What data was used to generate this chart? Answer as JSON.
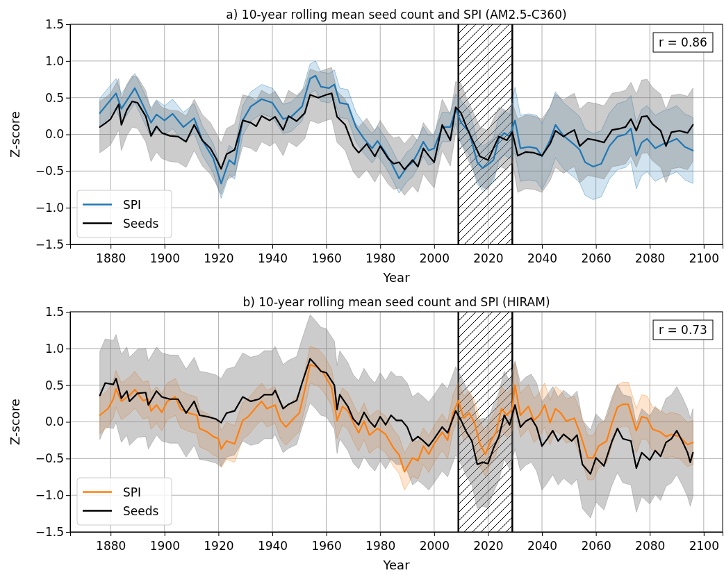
{
  "chart_data": [
    {
      "type": "line",
      "title": "a) 10-year rolling mean seed count and SPI (AM2.5-C360)",
      "xlabel": "Year",
      "ylabel": "Z-score",
      "xlim": [
        1865,
        2107
      ],
      "xticks": [
        1880,
        1900,
        1920,
        1940,
        1960,
        1980,
        2000,
        2020,
        2040,
        2060,
        2080,
        2100
      ],
      "ylim": [
        -1.5,
        1.5
      ],
      "yticks": [
        {
          "value": -1.5,
          "label": "−1.5"
        },
        {
          "value": -1,
          "label": "−1.0"
        },
        {
          "value": -0.5,
          "label": "−0.5"
        },
        {
          "value": 0,
          "label": "0.0"
        },
        {
          "value": 0.5,
          "label": "0.5"
        },
        {
          "value": 1,
          "label": "1.0"
        },
        {
          "value": 1.5,
          "label": "1.5"
        }
      ],
      "grid": true,
      "legend": "bottom left",
      "annotations": [
        "r = 0.86"
      ],
      "bands": [
        {
          "axis": "x",
          "from": 2009,
          "to": 2029,
          "color": "#000000"
        }
      ],
      "series": [
        {
          "name": "SPI",
          "color": "#1f77b4",
          "x": [
            1876,
            1878,
            1882,
            1884,
            1886,
            1889,
            1892,
            1895,
            1897,
            1900,
            1903,
            1907,
            1911,
            1914,
            1918,
            1921,
            1924,
            1926,
            1929,
            1932,
            1936,
            1940,
            1944,
            1947,
            1951,
            1954,
            1956,
            1958,
            1961,
            1963,
            1965,
            1968,
            1971,
            1974,
            1977,
            1979,
            1982,
            1984,
            1987,
            1990,
            1992,
            1994,
            1996,
            1998,
            2000,
            2003,
            2006,
            2008,
            2010,
            2013,
            2016,
            2018,
            2020,
            2022,
            2024,
            2026,
            2028,
            2030,
            2032,
            2035,
            2038,
            2040,
            2043,
            2045,
            2048,
            2050,
            2052,
            2054,
            2056,
            2059,
            2062,
            2065,
            2068,
            2071,
            2073,
            2075,
            2077,
            2079,
            2082,
            2085,
            2087,
            2090,
            2093,
            2096
          ],
          "values": [
            0.29,
            0.38,
            0.56,
            0.35,
            0.46,
            0.63,
            0.4,
            0.16,
            0.27,
            0.19,
            0.28,
            0.1,
            0.22,
            -0.08,
            -0.32,
            -0.67,
            -0.35,
            -0.41,
            0.19,
            0.38,
            0.48,
            0.43,
            0.21,
            0.24,
            0.38,
            0.76,
            0.8,
            0.65,
            0.63,
            0.68,
            0.43,
            0.41,
            0.1,
            -0.06,
            -0.19,
            -0.09,
            -0.25,
            -0.38,
            -0.6,
            -0.44,
            -0.38,
            -0.25,
            -0.1,
            -0.22,
            -0.19,
            0.1,
            0.1,
            0.35,
            0.16,
            0.03,
            -0.38,
            -0.46,
            -0.41,
            -0.35,
            -0.06,
            0.02,
            -0.03,
            0.19,
            -0.19,
            -0.17,
            -0.19,
            -0.3,
            -0.08,
            0.13,
            -0.02,
            -0.08,
            -0.14,
            -0.21,
            -0.38,
            -0.44,
            -0.4,
            -0.16,
            -0.03,
            0.0,
            0.08,
            -0.29,
            -0.11,
            -0.06,
            -0.19,
            -0.13,
            -0.11,
            -0.06,
            -0.17,
            -0.22
          ],
          "lower": [
            0.09,
            0.18,
            0.36,
            0.15,
            0.26,
            0.43,
            0.2,
            -0.04,
            0.07,
            -0.01,
            0.08,
            -0.1,
            0.02,
            -0.28,
            -0.52,
            -0.87,
            -0.55,
            -0.61,
            -0.01,
            0.18,
            0.28,
            0.23,
            0.01,
            0.04,
            0.18,
            0.56,
            0.6,
            0.45,
            0.43,
            0.48,
            0.23,
            0.21,
            -0.1,
            -0.26,
            -0.39,
            -0.29,
            -0.45,
            -0.58,
            -0.8,
            -0.64,
            -0.58,
            -0.45,
            -0.3,
            -0.42,
            -0.39,
            -0.1,
            -0.1,
            0.15,
            -0.14,
            -0.27,
            -0.68,
            -0.76,
            -0.71,
            -0.65,
            -0.36,
            -0.28,
            -0.33,
            -0.26,
            -0.64,
            -0.62,
            -0.64,
            -0.75,
            -0.53,
            -0.32,
            -0.47,
            -0.53,
            -0.59,
            -0.66,
            -0.83,
            -0.89,
            -0.85,
            -0.61,
            -0.48,
            -0.45,
            -0.37,
            -0.74,
            -0.56,
            -0.51,
            -0.64,
            -0.58,
            -0.56,
            -0.51,
            -0.62,
            -0.67
          ],
          "upper": [
            0.49,
            0.58,
            0.76,
            0.55,
            0.66,
            0.83,
            0.6,
            0.36,
            0.47,
            0.39,
            0.48,
            0.3,
            0.42,
            0.12,
            -0.12,
            -0.47,
            -0.15,
            -0.21,
            0.39,
            0.58,
            0.68,
            0.63,
            0.41,
            0.44,
            0.58,
            0.96,
            1.0,
            0.85,
            0.83,
            0.88,
            0.63,
            0.61,
            0.3,
            0.14,
            0.01,
            0.11,
            -0.05,
            -0.18,
            -0.4,
            -0.24,
            -0.18,
            -0.05,
            0.1,
            -0.02,
            0.01,
            0.3,
            0.3,
            0.55,
            0.46,
            0.33,
            -0.08,
            -0.16,
            -0.11,
            -0.05,
            0.24,
            0.32,
            0.27,
            0.64,
            0.26,
            0.28,
            0.26,
            0.15,
            0.37,
            0.58,
            0.43,
            0.37,
            0.31,
            0.24,
            0.07,
            0.01,
            0.05,
            0.29,
            0.42,
            0.45,
            0.53,
            0.16,
            0.34,
            0.39,
            0.26,
            0.32,
            0.34,
            0.39,
            0.28,
            0.23
          ]
        },
        {
          "name": "Seeds",
          "color": "#000000",
          "x": [
            1876,
            1878,
            1880,
            1883,
            1884,
            1886,
            1888,
            1890,
            1893,
            1895,
            1897,
            1899,
            1902,
            1905,
            1908,
            1911,
            1914,
            1917,
            1919,
            1921,
            1923,
            1926,
            1929,
            1932,
            1934,
            1936,
            1939,
            1941,
            1944,
            1946,
            1949,
            1952,
            1954,
            1957,
            1960,
            1962,
            1964,
            1967,
            1970,
            1972,
            1975,
            1978,
            1980,
            1983,
            1985,
            1987,
            1989,
            1992,
            1994,
            1996,
            1998,
            2000,
            2003,
            2006,
            2008,
            2010,
            2012,
            2014,
            2017,
            2020,
            2022,
            2024,
            2027,
            2029,
            2031,
            2034,
            2037,
            2040,
            2043,
            2045,
            2048,
            2050,
            2052,
            2054,
            2057,
            2060,
            2063,
            2066,
            2069,
            2071,
            2073,
            2075,
            2077,
            2079,
            2081,
            2084,
            2086,
            2088,
            2091,
            2094,
            2096
          ],
          "values": [
            0.1,
            0.15,
            0.21,
            0.41,
            0.13,
            0.33,
            0.45,
            0.43,
            0.25,
            -0.02,
            0.11,
            0.02,
            -0.02,
            -0.03,
            -0.1,
            0.13,
            -0.08,
            -0.19,
            -0.32,
            -0.47,
            -0.27,
            -0.21,
            0.19,
            0.16,
            0.11,
            0.25,
            0.19,
            0.24,
            0.06,
            0.25,
            0.18,
            0.29,
            0.54,
            0.5,
            0.54,
            0.56,
            0.24,
            0.13,
            -0.16,
            -0.25,
            -0.13,
            -0.3,
            -0.16,
            -0.33,
            -0.4,
            -0.38,
            -0.48,
            -0.35,
            -0.44,
            -0.19,
            -0.29,
            -0.38,
            0.13,
            -0.08,
            0.37,
            0.29,
            0.1,
            -0.06,
            -0.3,
            -0.35,
            -0.19,
            -0.03,
            -0.08,
            0.03,
            -0.29,
            -0.24,
            -0.25,
            -0.29,
            -0.13,
            0.05,
            -0.03,
            0.02,
            0.06,
            -0.16,
            -0.06,
            -0.08,
            -0.11,
            0.06,
            0.08,
            0.1,
            0.21,
            0.05,
            0.24,
            0.25,
            0.14,
            0.05,
            -0.16,
            0.03,
            0.05,
            0.02,
            0.13
          ],
          "lower": [
            -0.25,
            -0.2,
            -0.14,
            0.06,
            -0.22,
            -0.02,
            0.1,
            0.08,
            -0.1,
            -0.37,
            -0.24,
            -0.33,
            -0.37,
            -0.38,
            -0.45,
            -0.22,
            -0.43,
            -0.54,
            -0.67,
            -0.82,
            -0.62,
            -0.56,
            -0.16,
            -0.19,
            -0.24,
            -0.1,
            -0.16,
            -0.11,
            -0.29,
            -0.1,
            -0.17,
            -0.06,
            0.19,
            0.15,
            0.19,
            0.21,
            -0.11,
            -0.22,
            -0.51,
            -0.6,
            -0.48,
            -0.65,
            -0.51,
            -0.68,
            -0.75,
            -0.73,
            -0.83,
            -0.7,
            -0.79,
            -0.54,
            -0.64,
            -0.73,
            -0.22,
            -0.43,
            0.02,
            -0.11,
            -0.3,
            -0.46,
            -0.7,
            -0.75,
            -0.59,
            -0.43,
            -0.48,
            -0.37,
            -0.79,
            -0.74,
            -0.75,
            -0.79,
            -0.63,
            -0.45,
            -0.53,
            -0.48,
            -0.44,
            -0.66,
            -0.56,
            -0.58,
            -0.61,
            -0.44,
            -0.42,
            -0.4,
            -0.29,
            -0.45,
            -0.26,
            -0.25,
            -0.36,
            -0.45,
            -0.66,
            -0.47,
            -0.45,
            -0.48,
            -0.37
          ],
          "upper": [
            0.45,
            0.5,
            0.56,
            0.76,
            0.48,
            0.68,
            0.8,
            0.78,
            0.6,
            0.33,
            0.46,
            0.37,
            0.33,
            0.32,
            0.25,
            0.48,
            0.27,
            0.16,
            0.03,
            -0.12,
            0.08,
            0.14,
            0.54,
            0.51,
            0.46,
            0.6,
            0.54,
            0.59,
            0.41,
            0.6,
            0.53,
            0.64,
            0.89,
            0.85,
            0.89,
            0.91,
            0.59,
            0.48,
            0.19,
            0.1,
            0.22,
            0.05,
            0.19,
            0.02,
            -0.05,
            -0.03,
            -0.13,
            0.0,
            -0.09,
            0.16,
            0.06,
            -0.03,
            0.48,
            0.27,
            0.72,
            0.69,
            0.5,
            0.34,
            0.1,
            0.05,
            0.21,
            0.37,
            0.32,
            0.43,
            0.21,
            0.26,
            0.25,
            0.21,
            0.37,
            0.55,
            0.47,
            0.52,
            0.56,
            0.34,
            0.44,
            0.42,
            0.39,
            0.56,
            0.58,
            0.6,
            0.71,
            0.55,
            0.74,
            0.75,
            0.64,
            0.55,
            0.34,
            0.53,
            0.55,
            0.52,
            0.63
          ]
        }
      ]
    },
    {
      "type": "line",
      "title": "b) 10-year rolling mean seed count and SPI (HIRAM)",
      "xlabel": "Year",
      "ylabel": "Z-score",
      "xlim": [
        1865,
        2107
      ],
      "xticks": [
        1880,
        1900,
        1920,
        1940,
        1960,
        1980,
        2000,
        2020,
        2040,
        2060,
        2080,
        2100
      ],
      "ylim": [
        -1.5,
        1.5
      ],
      "yticks": [
        {
          "value": -1.5,
          "label": "−1.5"
        },
        {
          "value": -1,
          "label": "−1.0"
        },
        {
          "value": -0.5,
          "label": "−0.5"
        },
        {
          "value": 0,
          "label": "0.0"
        },
        {
          "value": 0.5,
          "label": "0.5"
        },
        {
          "value": 1,
          "label": "1.0"
        },
        {
          "value": 1.5,
          "label": "1.5"
        }
      ],
      "grid": true,
      "legend": "bottom left",
      "annotations": [
        "r = 0.73"
      ],
      "bands": [
        {
          "axis": "x",
          "from": 2009,
          "to": 2029,
          "color": "#000000"
        }
      ],
      "series": [
        {
          "name": "SPI",
          "color": "#ff7f0e",
          "x": [
            1876,
            1879,
            1881,
            1882,
            1884,
            1887,
            1889,
            1892,
            1894,
            1895,
            1897,
            1899,
            1901,
            1904,
            1906,
            1909,
            1912,
            1913,
            1916,
            1918,
            1920,
            1921,
            1923,
            1926,
            1929,
            1931,
            1934,
            1936,
            1938,
            1941,
            1943,
            1945,
            1948,
            1950,
            1952,
            1954,
            1957,
            1959,
            1962,
            1964,
            1966,
            1968,
            1970,
            1972,
            1974,
            1976,
            1979,
            1982,
            1985,
            1987,
            1989,
            1992,
            1994,
            1996,
            1998,
            2000,
            2003,
            2005,
            2007,
            2009,
            2011,
            2013,
            2015,
            2017,
            2019,
            2021,
            2023,
            2025,
            2027,
            2029,
            2030,
            2032,
            2035,
            2037,
            2039,
            2041,
            2043,
            2045,
            2047,
            2049,
            2052,
            2054,
            2057,
            2059,
            2061,
            2064,
            2066,
            2068,
            2070,
            2072,
            2075,
            2077,
            2079,
            2081,
            2084,
            2086,
            2088,
            2091,
            2094,
            2096
          ],
          "values": [
            0.09,
            0.18,
            0.31,
            0.45,
            0.28,
            0.36,
            0.44,
            0.29,
            0.31,
            0.15,
            0.23,
            0.13,
            0.28,
            0.34,
            0.17,
            0.12,
            0.09,
            -0.09,
            -0.14,
            -0.2,
            -0.23,
            -0.37,
            -0.26,
            -0.3,
            0.02,
            0.07,
            0.2,
            0.28,
            0.18,
            0.23,
            0.02,
            -0.07,
            0.05,
            0.12,
            0.43,
            0.78,
            0.74,
            0.66,
            0.47,
            0.02,
            0.21,
            0.15,
            -0.01,
            -0.15,
            0.01,
            -0.18,
            -0.09,
            -0.17,
            -0.36,
            -0.45,
            -0.68,
            -0.49,
            -0.53,
            -0.33,
            -0.44,
            -0.3,
            -0.14,
            -0.25,
            0.12,
            0.29,
            0.05,
            0.12,
            -0.01,
            -0.3,
            -0.44,
            -0.26,
            -0.14,
            0.18,
            0.09,
            0.18,
            0.5,
            0.09,
            0.21,
            0.02,
            0.09,
            0.23,
            -0.01,
            0.18,
            0.12,
            0.01,
            0.05,
            -0.14,
            -0.49,
            -0.49,
            -0.33,
            -0.26,
            -0.01,
            0.2,
            0.24,
            0.24,
            -0.12,
            0.07,
            0.05,
            -0.1,
            -0.14,
            -0.2,
            -0.17,
            -0.2,
            -0.31,
            -0.28
          ],
          "lower": [
            -0.16,
            -0.07,
            0.06,
            0.2,
            0.03,
            0.11,
            0.19,
            0.04,
            0.06,
            -0.1,
            -0.02,
            -0.12,
            0.03,
            0.09,
            -0.08,
            -0.13,
            -0.16,
            -0.34,
            -0.39,
            -0.45,
            -0.48,
            -0.62,
            -0.51,
            -0.55,
            -0.23,
            -0.18,
            -0.05,
            0.03,
            -0.07,
            -0.02,
            -0.23,
            -0.32,
            -0.2,
            -0.13,
            0.18,
            0.53,
            0.49,
            0.41,
            0.22,
            -0.23,
            -0.04,
            -0.1,
            -0.26,
            -0.4,
            -0.24,
            -0.43,
            -0.34,
            -0.42,
            -0.61,
            -0.7,
            -0.93,
            -0.74,
            -0.78,
            -0.58,
            -0.69,
            -0.55,
            -0.39,
            -0.5,
            -0.13,
            0.04,
            -0.25,
            -0.18,
            -0.31,
            -0.6,
            -0.74,
            -0.56,
            -0.44,
            -0.12,
            -0.21,
            -0.12,
            0.2,
            -0.21,
            -0.09,
            -0.28,
            -0.21,
            -0.07,
            -0.31,
            -0.12,
            -0.18,
            -0.29,
            -0.25,
            -0.44,
            -0.79,
            -0.79,
            -0.63,
            -0.56,
            -0.31,
            -0.1,
            -0.06,
            -0.06,
            -0.42,
            -0.23,
            -0.25,
            -0.4,
            -0.44,
            -0.5,
            -0.47,
            -0.5,
            -0.61,
            -0.58
          ],
          "upper": [
            0.34,
            0.43,
            0.56,
            0.7,
            0.53,
            0.61,
            0.69,
            0.54,
            0.56,
            0.4,
            0.48,
            0.38,
            0.53,
            0.59,
            0.42,
            0.37,
            0.34,
            0.16,
            0.11,
            0.05,
            0.02,
            -0.12,
            -0.01,
            -0.05,
            0.27,
            0.32,
            0.45,
            0.53,
            0.43,
            0.48,
            0.27,
            0.18,
            0.3,
            0.37,
            0.68,
            1.03,
            0.99,
            0.91,
            0.72,
            0.27,
            0.46,
            0.4,
            0.24,
            0.1,
            0.26,
            0.07,
            0.16,
            0.08,
            -0.11,
            -0.2,
            -0.43,
            -0.24,
            -0.28,
            -0.08,
            -0.19,
            -0.05,
            0.11,
            0.0,
            0.37,
            0.54,
            0.35,
            0.42,
            0.29,
            0.0,
            -0.14,
            0.04,
            0.16,
            0.48,
            0.39,
            0.48,
            0.8,
            0.39,
            0.51,
            0.32,
            0.39,
            0.53,
            0.29,
            0.48,
            0.42,
            0.31,
            0.35,
            0.16,
            -0.19,
            -0.19,
            -0.03,
            0.04,
            0.29,
            0.5,
            0.54,
            0.54,
            0.18,
            0.37,
            0.35,
            0.2,
            0.16,
            0.1,
            0.13,
            0.1,
            -0.01,
            0.02
          ]
        },
        {
          "name": "Seeds",
          "color": "#000000",
          "x": [
            1876,
            1878,
            1881,
            1882,
            1884,
            1886,
            1887,
            1890,
            1893,
            1894,
            1897,
            1899,
            1902,
            1905,
            1908,
            1911,
            1913,
            1916,
            1919,
            1921,
            1923,
            1926,
            1929,
            1932,
            1935,
            1937,
            1940,
            1941,
            1944,
            1946,
            1949,
            1951,
            1954,
            1956,
            1958,
            1960,
            1963,
            1964,
            1965,
            1968,
            1970,
            1972,
            1974,
            1976,
            1978,
            1980,
            1982,
            1984,
            1986,
            1988,
            1990,
            1992,
            1994,
            1996,
            1998,
            2000,
            2003,
            2005,
            2007,
            2008,
            2010,
            2012,
            2014,
            2016,
            2018,
            2020,
            2022,
            2024,
            2026,
            2028,
            2030,
            2032,
            2034,
            2036,
            2038,
            2040,
            2042,
            2044,
            2046,
            2048,
            2051,
            2053,
            2055,
            2058,
            2060,
            2063,
            2066,
            2068,
            2070,
            2073,
            2075,
            2077,
            2080,
            2082,
            2084,
            2086,
            2088,
            2090,
            2092,
            2094,
            2095,
            2096
          ],
          "values": [
            0.36,
            0.53,
            0.51,
            0.59,
            0.32,
            0.42,
            0.28,
            0.39,
            0.4,
            0.23,
            0.42,
            0.34,
            0.31,
            0.31,
            0.12,
            0.28,
            0.09,
            0.07,
            0.04,
            -0.01,
            0.12,
            0.15,
            0.34,
            0.28,
            0.31,
            0.37,
            0.37,
            0.43,
            0.18,
            0.24,
            0.29,
            0.53,
            0.86,
            0.78,
            0.69,
            0.67,
            0.5,
            0.17,
            0.37,
            0.21,
            0.04,
            -0.04,
            0.13,
            0.01,
            -0.07,
            0.07,
            -0.04,
            0.09,
            0.02,
            0.02,
            -0.07,
            -0.26,
            -0.2,
            -0.26,
            -0.33,
            -0.23,
            -0.07,
            -0.15,
            0.05,
            0.15,
            0.02,
            -0.14,
            -0.26,
            -0.58,
            -0.55,
            -0.57,
            -0.36,
            -0.2,
            0.09,
            -0.04,
            0.23,
            -0.07,
            0.01,
            0.05,
            -0.07,
            -0.33,
            -0.23,
            -0.12,
            -0.26,
            -0.17,
            -0.26,
            -0.18,
            -0.58,
            -0.71,
            -0.49,
            -0.6,
            -0.26,
            -0.09,
            -0.23,
            -0.26,
            -0.63,
            -0.42,
            -0.52,
            -0.39,
            -0.47,
            -0.28,
            -0.23,
            -0.12,
            -0.26,
            -0.42,
            -0.55,
            -0.42
          ],
          "lower": [
            -0.24,
            -0.07,
            -0.09,
            -0.01,
            -0.28,
            -0.18,
            -0.32,
            -0.21,
            -0.2,
            -0.37,
            -0.18,
            -0.26,
            -0.29,
            -0.29,
            -0.48,
            -0.32,
            -0.51,
            -0.53,
            -0.56,
            -0.61,
            -0.48,
            -0.45,
            -0.26,
            -0.32,
            -0.29,
            -0.23,
            -0.23,
            -0.17,
            -0.42,
            -0.36,
            -0.31,
            -0.07,
            0.26,
            0.18,
            0.09,
            0.07,
            -0.1,
            -0.43,
            -0.23,
            -0.39,
            -0.56,
            -0.64,
            -0.47,
            -0.59,
            -0.67,
            -0.53,
            -0.64,
            -0.51,
            -0.58,
            -0.58,
            -0.67,
            -0.86,
            -0.8,
            -0.86,
            -0.93,
            -0.83,
            -0.67,
            -0.75,
            -0.55,
            -0.45,
            -0.58,
            -0.74,
            -0.86,
            -1.18,
            -1.15,
            -1.17,
            -0.96,
            -0.8,
            -0.51,
            -0.64,
            -0.37,
            -0.67,
            -0.59,
            -0.55,
            -0.67,
            -0.93,
            -0.83,
            -0.72,
            -0.86,
            -0.77,
            -0.86,
            -0.78,
            -1.18,
            -1.31,
            -1.09,
            -1.2,
            -0.86,
            -0.69,
            -0.83,
            -0.86,
            -1.23,
            -1.02,
            -1.12,
            -0.99,
            -1.07,
            -0.88,
            -0.83,
            -0.72,
            -0.86,
            -1.02,
            -1.15,
            -1.02
          ],
          "upper": [
            0.96,
            1.13,
            1.11,
            1.19,
            0.92,
            1.02,
            0.88,
            0.99,
            1.0,
            0.83,
            1.02,
            0.94,
            0.91,
            0.91,
            0.72,
            0.88,
            0.69,
            0.67,
            0.64,
            0.59,
            0.72,
            0.75,
            0.94,
            0.88,
            0.91,
            0.97,
            0.97,
            1.03,
            0.78,
            0.84,
            0.89,
            1.13,
            1.46,
            1.38,
            1.29,
            1.27,
            1.1,
            0.77,
            0.97,
            0.81,
            0.64,
            0.56,
            0.73,
            0.61,
            0.53,
            0.67,
            0.56,
            0.69,
            0.62,
            0.62,
            0.53,
            0.34,
            0.4,
            0.34,
            0.27,
            0.37,
            0.53,
            0.45,
            0.65,
            0.75,
            0.62,
            0.46,
            0.34,
            0.02,
            0.05,
            0.03,
            0.24,
            0.4,
            0.69,
            0.56,
            0.83,
            0.53,
            0.61,
            0.65,
            0.53,
            0.27,
            0.37,
            0.48,
            0.34,
            0.43,
            0.34,
            0.42,
            0.02,
            -0.11,
            0.11,
            0.0,
            0.34,
            0.51,
            0.37,
            0.34,
            -0.03,
            0.18,
            0.08,
            0.21,
            0.13,
            0.32,
            0.37,
            0.48,
            0.34,
            0.18,
            0.05,
            0.18
          ]
        }
      ]
    }
  ]
}
